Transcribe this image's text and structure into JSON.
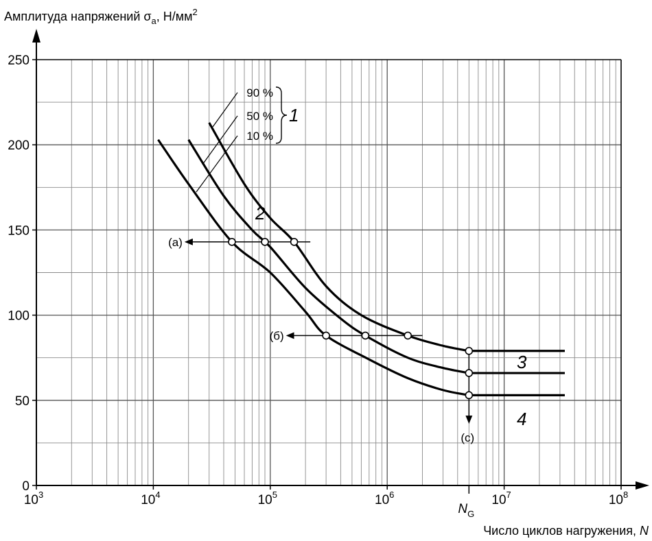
{
  "chart_data": {
    "type": "line",
    "title": "",
    "ylabel": {
      "text": "Амплитуда напряжений σ",
      "sub": "a",
      "unit": ", Н/мм",
      "sup": "2"
    },
    "xlabel": {
      "text": "Число циклов нагружения, ",
      "var": "N"
    },
    "x_scale": "log",
    "xlim": [
      1000,
      100000000
    ],
    "ylim": [
      0,
      250
    ],
    "grid": true,
    "yticks": [
      0,
      50,
      100,
      150,
      200,
      250
    ],
    "yticklabels": [
      "0",
      "50",
      "100",
      "150",
      "200",
      "250"
    ],
    "xticks": [
      {
        "value": 1000,
        "base": "10",
        "exp": "3"
      },
      {
        "value": 10000,
        "base": "10",
        "exp": "4"
      },
      {
        "value": 100000,
        "base": "10",
        "exp": "5"
      },
      {
        "value": 1000000,
        "base": "10",
        "exp": "6"
      },
      {
        "value": 10000000,
        "base": "10",
        "exp": "7"
      },
      {
        "value": 100000000,
        "base": "10",
        "exp": "8"
      }
    ],
    "ng_label": {
      "main": "N",
      "sub": "G",
      "value": 5000000
    },
    "series": [
      {
        "name": "90 %",
        "x": [
          30000,
          60000,
          100000,
          160000,
          300000,
          600000,
          1500000,
          3000000,
          5000000,
          33000000
        ],
        "y": [
          213,
          177,
          157,
          143,
          117,
          100,
          88,
          82,
          79,
          79
        ]
      },
      {
        "name": "50 %",
        "x": [
          20000,
          40000,
          70000,
          100000,
          200000,
          400000,
          650000,
          1500000,
          3000000,
          5000000,
          33000000
        ],
        "y": [
          203,
          170,
          150,
          140,
          116,
          98,
          88,
          75,
          69,
          66,
          66
        ]
      },
      {
        "name": "10 %",
        "x": [
          11000,
          20000,
          47000,
          100000,
          200000,
          300000,
          700000,
          1500000,
          3000000,
          5000000,
          33000000
        ],
        "y": [
          203,
          177,
          143,
          125,
          102,
          88,
          74,
          63,
          56,
          53,
          53
        ]
      }
    ],
    "markers": [
      {
        "x": 47000,
        "y": 143
      },
      {
        "x": 90000,
        "y": 143
      },
      {
        "x": 160000,
        "y": 143
      },
      {
        "x": 300000,
        "y": 88
      },
      {
        "x": 650000,
        "y": 88
      },
      {
        "x": 1500000,
        "y": 88
      },
      {
        "x": 5000000,
        "y": 79
      },
      {
        "x": 5000000,
        "y": 66
      },
      {
        "x": 5000000,
        "y": 53
      }
    ],
    "horizontal_lines": [
      {
        "label": "(a)",
        "y": 143,
        "x_from": 220000,
        "x_to": 19000
      },
      {
        "label": "(б)",
        "y": 88,
        "x_from": 2000000,
        "x_to": 140000
      }
    ],
    "vertical_arrow": {
      "label": "(c)",
      "x": 5000000,
      "y_from": 79,
      "y_to": 37
    },
    "annotations": {
      "legend_group": [
        "90 %",
        "50 %",
        "10 %"
      ],
      "group_number": "1",
      "region_2": "2",
      "region_3": "3",
      "region_4": "4"
    }
  }
}
